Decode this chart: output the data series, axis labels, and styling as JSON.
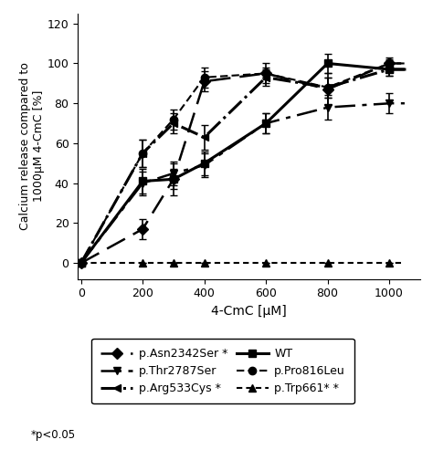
{
  "title": "",
  "xlabel": "4-CmC [μM]",
  "ylabel": "Calcium release compared to\n1000μM 4-CmC [%]",
  "xlim": [
    -10,
    1100
  ],
  "ylim": [
    -8,
    125
  ],
  "yticks": [
    0,
    20,
    40,
    60,
    80,
    100,
    120
  ],
  "xticks": [
    0,
    200,
    400,
    600,
    800,
    1000
  ],
  "series": {
    "Asn2342Ser": {
      "x": [
        0,
        200,
        300,
        400,
        600,
        800,
        1000
      ],
      "y": [
        0,
        17,
        42,
        91,
        95,
        87,
        100
      ],
      "yerr": [
        0,
        5,
        8,
        5,
        5,
        8,
        3
      ],
      "marker": "D",
      "markersize": 6,
      "color": "black",
      "label": "p.Asn2342Ser *"
    },
    "Arg533Cys": {
      "x": [
        0,
        200,
        300,
        400,
        600,
        800,
        1000
      ],
      "y": [
        0,
        55,
        70,
        63,
        93,
        88,
        97
      ],
      "yerr": [
        0,
        7,
        5,
        6,
        4,
        5,
        3
      ],
      "marker": "<",
      "markersize": 6,
      "color": "black",
      "label": "p.Arg533Cys *"
    },
    "Pro816Leu": {
      "x": [
        0,
        200,
        300,
        400,
        600,
        800,
        1000
      ],
      "y": [
        0,
        55,
        72,
        93,
        95,
        88,
        100
      ],
      "yerr": [
        0,
        7,
        5,
        5,
        3,
        5,
        2
      ],
      "marker": "o",
      "markersize": 6,
      "color": "black",
      "label": "p.Pro816Leu"
    },
    "Thr2787Ser": {
      "x": [
        0,
        200,
        300,
        400,
        600,
        800,
        1000
      ],
      "y": [
        0,
        40,
        45,
        49,
        70,
        78,
        80
      ],
      "yerr": [
        0,
        6,
        6,
        6,
        5,
        6,
        5
      ],
      "marker": "v",
      "markersize": 6,
      "color": "black",
      "label": "p.Thr2787Ser"
    },
    "WT": {
      "x": [
        0,
        200,
        300,
        400,
        600,
        800,
        1000
      ],
      "y": [
        0,
        41,
        42,
        50,
        70,
        100,
        97
      ],
      "yerr": [
        0,
        6,
        5,
        6,
        5,
        5,
        3
      ],
      "marker": "s",
      "markersize": 6,
      "color": "black",
      "label": "WT"
    },
    "Trp661": {
      "x": [
        0,
        200,
        300,
        400,
        600,
        800,
        1000
      ],
      "y": [
        0,
        0,
        0,
        0,
        0,
        0,
        0
      ],
      "yerr": [
        0,
        0,
        0,
        0,
        0,
        0,
        0
      ],
      "marker": "^",
      "markersize": 6,
      "color": "black",
      "label": "p.Trp661* *"
    }
  },
  "footnote": "*p<0.05",
  "background_color": "#ffffff"
}
